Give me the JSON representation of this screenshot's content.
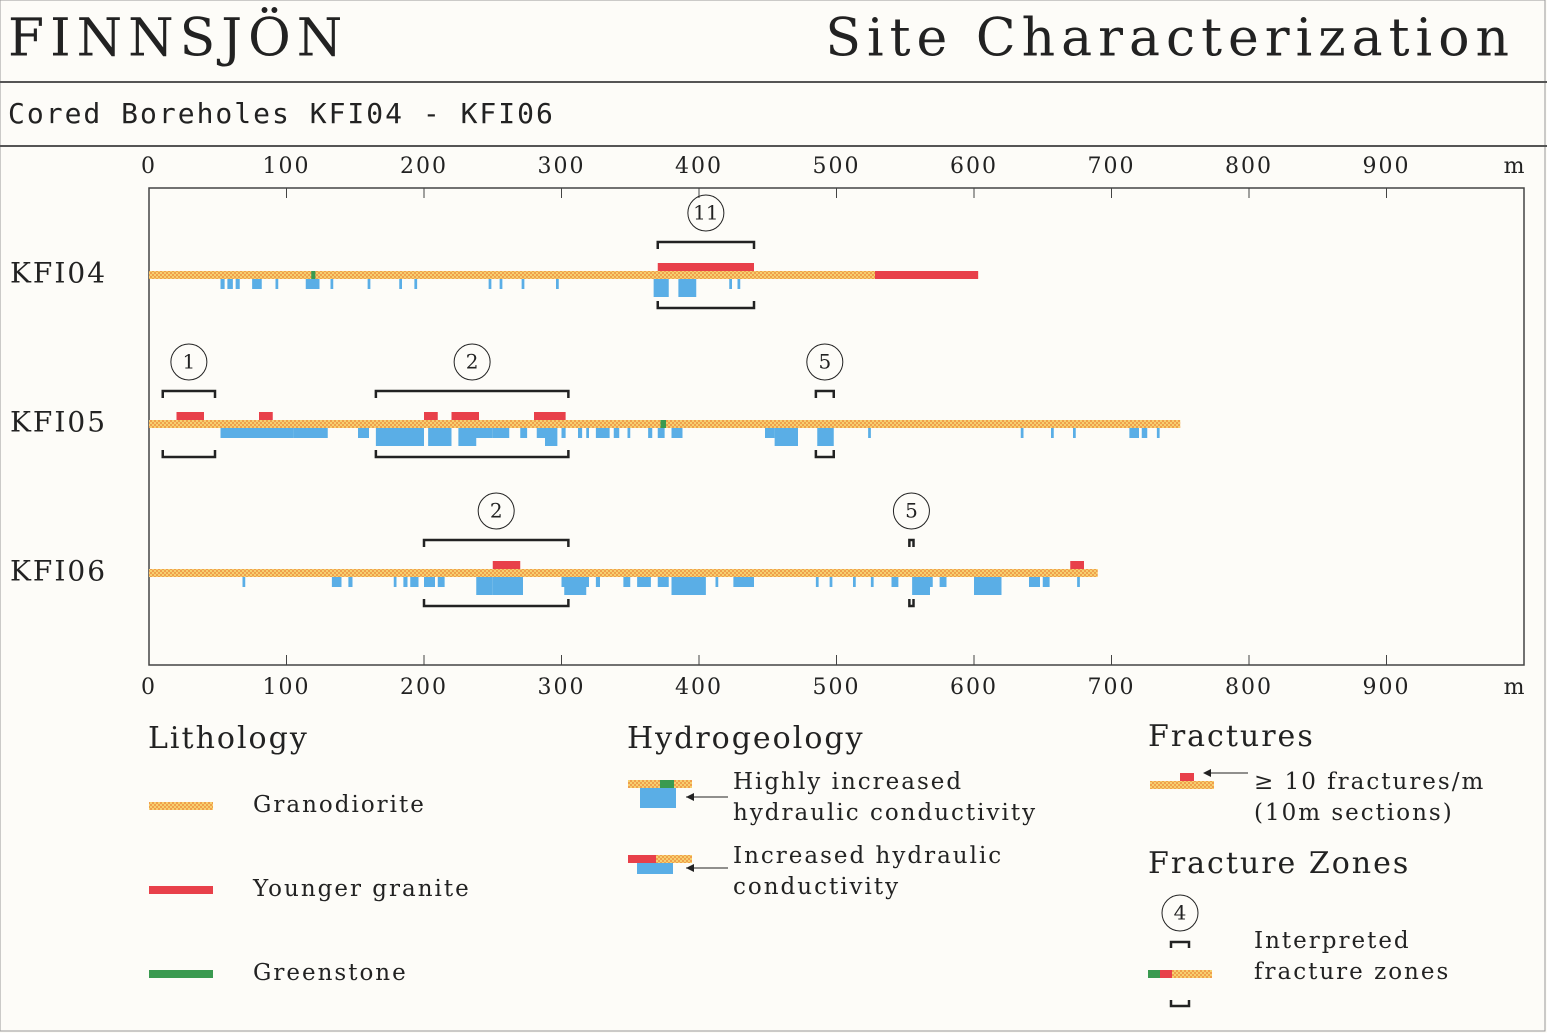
{
  "header": {
    "title": "FINNSJÖN",
    "title_right": "Site Characterization",
    "subtitle": "Cored Boreholes KFI04 - KFI06"
  },
  "axis": {
    "lim": [
      0,
      1000
    ],
    "ticks": [
      0,
      100,
      200,
      300,
      400,
      500,
      600,
      700,
      800,
      900
    ],
    "unit": "m"
  },
  "boreholes": [
    {
      "name": "KFI04",
      "length": 603,
      "granite": [
        [
          528,
          603
        ]
      ],
      "greenstone": [
        [
          118,
          121
        ]
      ],
      "fractures": [
        [
          370,
          440
        ]
      ],
      "high_conductivity": [
        [
          367,
          378
        ],
        [
          385,
          398
        ]
      ],
      "increased_conductivity": [
        [
          52,
          55
        ],
        [
          57,
          61
        ],
        [
          63,
          66
        ],
        [
          75,
          82
        ],
        [
          92,
          94
        ],
        [
          114,
          124
        ],
        [
          132,
          134
        ],
        [
          159,
          161
        ],
        [
          182,
          184
        ],
        [
          193,
          195
        ],
        [
          247,
          249
        ],
        [
          255,
          257
        ],
        [
          271,
          273
        ],
        [
          296,
          298
        ],
        [
          392,
          396
        ],
        [
          422,
          424
        ],
        [
          428,
          430
        ]
      ],
      "zones": [
        {
          "label": "11",
          "from": 370,
          "to": 440
        }
      ]
    },
    {
      "name": "KFI05",
      "length": 750,
      "granite": [],
      "greenstone": [
        [
          372,
          376
        ]
      ],
      "fractures": [
        [
          20,
          40
        ],
        [
          80,
          90
        ],
        [
          200,
          210
        ],
        [
          220,
          240
        ],
        [
          280,
          303
        ]
      ],
      "high_conductivity": [
        [
          165,
          200
        ],
        [
          203,
          220
        ],
        [
          225,
          238
        ],
        [
          288,
          297
        ],
        [
          455,
          472
        ],
        [
          486,
          498
        ]
      ],
      "increased_conductivity": [
        [
          52,
          60
        ],
        [
          60,
          105
        ],
        [
          105,
          130
        ],
        [
          152,
          160
        ],
        [
          235,
          250
        ],
        [
          250,
          262
        ],
        [
          270,
          275
        ],
        [
          282,
          295
        ],
        [
          300,
          303
        ],
        [
          312,
          315
        ],
        [
          318,
          320
        ],
        [
          325,
          335
        ],
        [
          338,
          342
        ],
        [
          348,
          350
        ],
        [
          363,
          366
        ],
        [
          370,
          375
        ],
        [
          380,
          388
        ],
        [
          448,
          455
        ],
        [
          523,
          525
        ],
        [
          634,
          636
        ],
        [
          656,
          658
        ],
        [
          672,
          674
        ],
        [
          713,
          720
        ],
        [
          722,
          726
        ],
        [
          733,
          735
        ]
      ],
      "zones": [
        {
          "label": "1",
          "from": 10,
          "to": 48
        },
        {
          "label": "2",
          "from": 165,
          "to": 305
        },
        {
          "label": "5",
          "from": 485,
          "to": 498
        }
      ]
    },
    {
      "name": "KFI06",
      "length": 690,
      "granite": [],
      "greenstone": [],
      "fractures": [
        [
          250,
          270
        ],
        [
          670,
          680
        ]
      ],
      "high_conductivity": [
        [
          238,
          250
        ],
        [
          250,
          272
        ],
        [
          302,
          318
        ],
        [
          380,
          405
        ],
        [
          555,
          568
        ],
        [
          600,
          620
        ]
      ],
      "increased_conductivity": [
        [
          68,
          70
        ],
        [
          133,
          140
        ],
        [
          145,
          148
        ],
        [
          178,
          180
        ],
        [
          185,
          188
        ],
        [
          190,
          196
        ],
        [
          200,
          208
        ],
        [
          210,
          215
        ],
        [
          300,
          305
        ],
        [
          305,
          320
        ],
        [
          325,
          328
        ],
        [
          345,
          350
        ],
        [
          355,
          365
        ],
        [
          370,
          378
        ],
        [
          392,
          402
        ],
        [
          412,
          414
        ],
        [
          425,
          440
        ],
        [
          485,
          487
        ],
        [
          495,
          497
        ],
        [
          512,
          514
        ],
        [
          525,
          527
        ],
        [
          540,
          545
        ],
        [
          560,
          570
        ],
        [
          575,
          580
        ],
        [
          615,
          620
        ],
        [
          640,
          648
        ],
        [
          650,
          655
        ],
        [
          675,
          677
        ]
      ],
      "zones": [
        {
          "label": "2",
          "from": 200,
          "to": 305
        },
        {
          "label": "5",
          "from": 553,
          "to": 556
        }
      ]
    }
  ],
  "legend": {
    "lithology": {
      "title": "Lithology",
      "items": [
        "Granodiorite",
        "Younger granite",
        "Greenstone"
      ]
    },
    "hydrogeology": {
      "title": "Hydrogeology",
      "items": [
        [
          "Highly increased",
          "hydraulic conductivity"
        ],
        [
          "Increased hydraulic",
          "conductivity"
        ]
      ]
    },
    "fractures": {
      "title": "Fractures",
      "lines": [
        "≥ 10 fractures/m",
        "(10m sections)"
      ]
    },
    "fracture_zones": {
      "title": "Fracture Zones",
      "symbol": "4",
      "lines": [
        "Interpreted",
        "fracture zones"
      ]
    }
  }
}
